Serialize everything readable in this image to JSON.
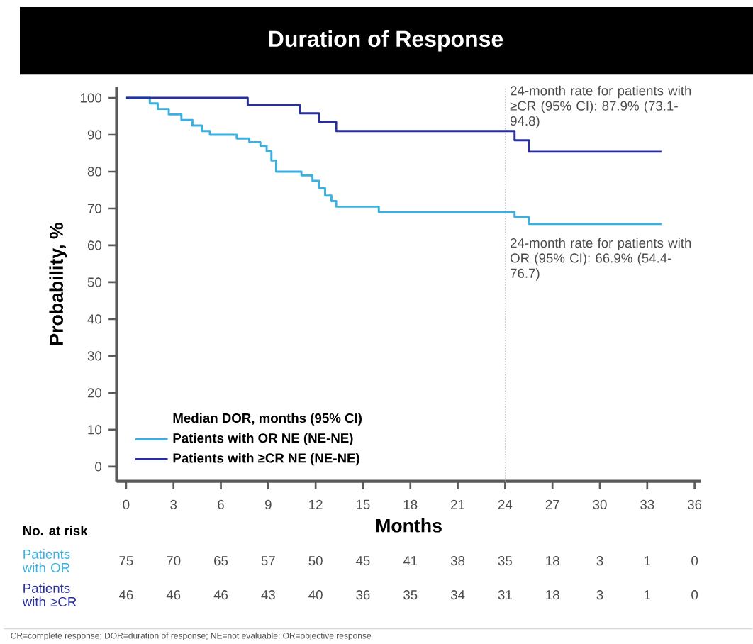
{
  "chart_data": {
    "type": "step",
    "title": "Duration of Response",
    "xlabel": "Months",
    "ylabel": "Probability, %",
    "legend_title": "Median DOR, months (95% CI)",
    "legend": "bottom left",
    "xlim": [
      -0.6,
      36.4
    ],
    "ylim": [
      -4,
      103
    ],
    "xticks": [
      0,
      3,
      6,
      9,
      12,
      15,
      18,
      21,
      24,
      27,
      30,
      33,
      36
    ],
    "yticks": [
      0,
      10,
      20,
      30,
      40,
      50,
      60,
      70,
      80,
      90,
      100
    ],
    "series": [
      {
        "name": "Patients with OR NE (NE-NE)",
        "color": "#3bb0e0",
        "x": [
          0,
          1.5,
          2,
          2.7,
          3.5,
          4.2,
          4.8,
          5.3,
          7,
          7.8,
          8.5,
          8.9,
          9.2,
          9.5,
          11.1,
          11.8,
          12.2,
          12.6,
          13,
          13.3,
          16,
          24.6,
          25.5,
          33.9
        ],
        "values": [
          100,
          98.5,
          97,
          95.5,
          94,
          92.5,
          91,
          90,
          89,
          88,
          87,
          85.5,
          83,
          80,
          79,
          77.5,
          75.5,
          73.5,
          72,
          70.5,
          69,
          67.7,
          65.8,
          65.8
        ]
      },
      {
        "name": "Patients with ≥CR NE (NE-NE)",
        "color": "#2b2f9e",
        "x": [
          0,
          7.7,
          11,
          12.2,
          13.3,
          24.6,
          25.5,
          33.9
        ],
        "values": [
          100,
          98,
          95.8,
          93.5,
          91,
          88.5,
          85.4,
          85.4
        ]
      }
    ],
    "ref_lines": [
      {
        "axis": "x",
        "value": 24,
        "color": "#aaaaaa",
        "line_style": "dotted"
      }
    ],
    "annotations": [
      {
        "text": "24-month rate for patients with ≥CR (95% CI): 87.9% (73.1-94.8)",
        "x": 24,
        "y": 87.9
      },
      {
        "text": "24-month rate for patients with OR (95% CI): 66.9% (54.4-76.7)",
        "x": 24,
        "y": 66.9
      },
      "No. at risk",
      "Patients with OR",
      "Patients with ≥CR",
      "75",
      "70",
      "65",
      "57",
      "50",
      "45",
      "41",
      "38",
      "35",
      "18",
      "3",
      "1",
      "0",
      "46",
      "46",
      "46",
      "43",
      "40",
      "36",
      "35",
      "34",
      "31",
      "18",
      "3",
      "1",
      "0",
      "CR=complete response; DOR=duration of response; NE=not evaluable; OR=objective response"
    ]
  }
}
